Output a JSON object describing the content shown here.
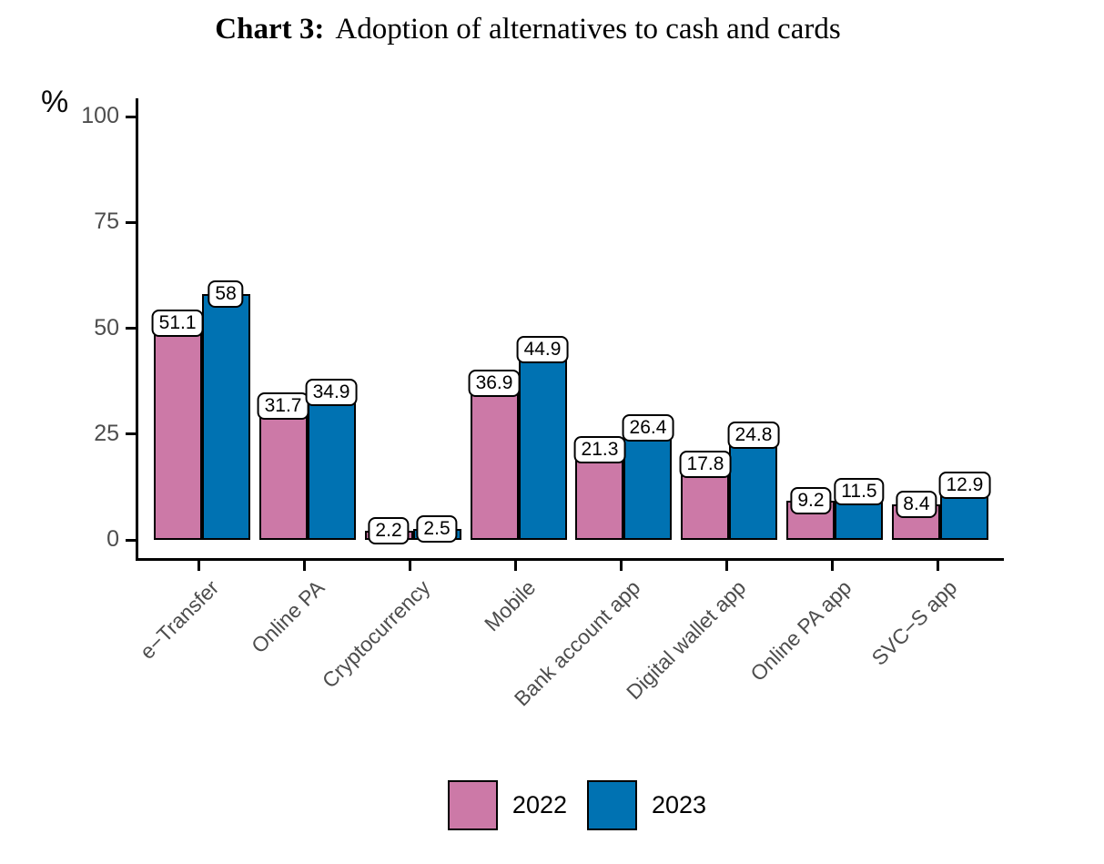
{
  "title": {
    "prefix": "Chart 3:",
    "text": "Adoption of alternatives to cash and cards"
  },
  "y_axis": {
    "unit_label": "%",
    "ticks": [
      0,
      25,
      50,
      75,
      100
    ]
  },
  "chart_data": {
    "type": "bar",
    "title": "Chart 3: Adoption of alternatives to cash and cards",
    "categories": [
      "e−Transfer",
      "Online PA",
      "Cryptocurrency",
      "Mobile",
      "Bank account app",
      "Digital wallet app",
      "Online PA app",
      "SVC−S app"
    ],
    "series": [
      {
        "name": "2022",
        "color": "#CC79A7",
        "values": [
          51.1,
          31.7,
          2.2,
          36.9,
          21.3,
          17.8,
          9.2,
          8.4
        ]
      },
      {
        "name": "2023",
        "color": "#0072B2",
        "values": [
          58,
          34.9,
          2.5,
          44.9,
          26.4,
          24.8,
          11.5,
          12.9
        ]
      }
    ],
    "xlabel": "",
    "ylabel": "%",
    "ylim": [
      0,
      100
    ],
    "grid": false,
    "bar_labels": true,
    "bar_outline_color": "#000000",
    "axis_color": "#000000",
    "tick_label_color": "#4d4d4d",
    "legend_position": "bottom"
  },
  "legend": {
    "items": [
      {
        "label": "2022",
        "color": "#CC79A7"
      },
      {
        "label": "2023",
        "color": "#0072B2"
      }
    ]
  }
}
